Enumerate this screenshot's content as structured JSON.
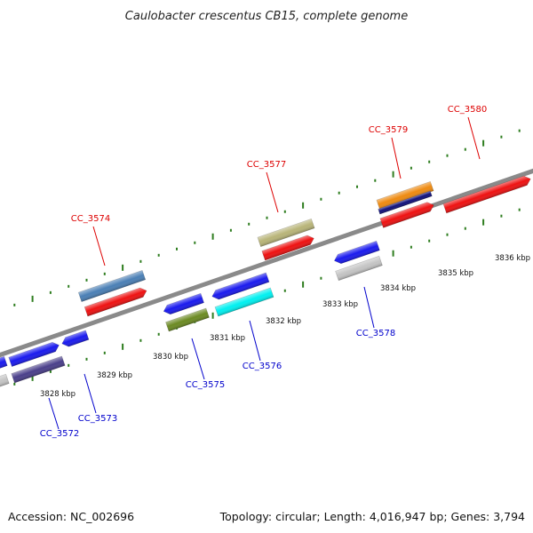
{
  "title": "Caulobacter crescentus CB15, complete genome",
  "footer": {
    "accession": "Accession: NC_002696",
    "summary": "Topology: circular; Length: 4,016,947 bp; Genes: 3,794"
  },
  "colors": {
    "backbone": "#888888",
    "tick": "#2e7d1f",
    "forward_label": "#dd0000",
    "reverse_label": "#0000cc"
  },
  "scale": {
    "unit": "kbp",
    "ticks": [
      {
        "kbp": 3828,
        "label": "3828 kbp"
      },
      {
        "kbp": 3829,
        "label": "3829 kbp"
      },
      {
        "kbp": 3830,
        "label": "3830 kbp"
      },
      {
        "kbp": 3831,
        "label": "3831 kbp"
      },
      {
        "kbp": 3832,
        "label": "3832 kbp"
      },
      {
        "kbp": 3833,
        "label": "3833 kbp"
      },
      {
        "kbp": 3834,
        "label": "3834 kbp"
      },
      {
        "kbp": 3835,
        "label": "3835 kbp"
      },
      {
        "kbp": 3836,
        "label": "3836 kbp"
      }
    ]
  },
  "gene_labels": [
    {
      "id": "g3572",
      "text": "CC_3572",
      "strand": "reverse"
    },
    {
      "id": "g3573",
      "text": "CC_3573",
      "strand": "reverse"
    },
    {
      "id": "g3574",
      "text": "CC_3574",
      "strand": "forward"
    },
    {
      "id": "g3575",
      "text": "CC_3575",
      "strand": "reverse"
    },
    {
      "id": "g3576",
      "text": "CC_3576",
      "strand": "reverse"
    },
    {
      "id": "g3577",
      "text": "CC_3577",
      "strand": "forward"
    },
    {
      "id": "g3578",
      "text": "CC_3578",
      "strand": "reverse"
    },
    {
      "id": "g3579",
      "text": "CC_3579",
      "strand": "forward"
    },
    {
      "id": "g3580",
      "text": "CC_3580",
      "strand": "forward"
    }
  ],
  "feature_colors": {
    "blue": "#1a1aee",
    "red": "#ee1111",
    "steel": "#4a7fb5",
    "khaki": "#b8b478",
    "orange": "#ee8a10",
    "navy": "#10107a",
    "cyan": "#00f0f0",
    "olive": "#6b8a22",
    "indigo": "#4a3f8a",
    "silver": "#c4c4c4"
  }
}
